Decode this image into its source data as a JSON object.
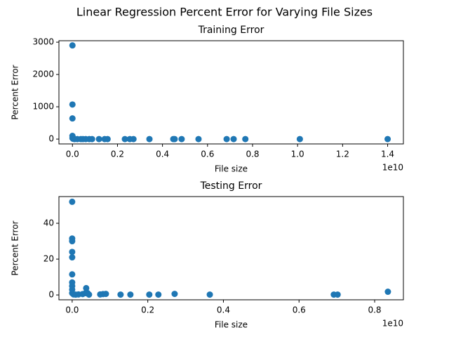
{
  "title": "Linear Regression Percent Error for Varying File Sizes",
  "chart_data": [
    {
      "type": "scatter",
      "title": "Training Error",
      "x_label": "File size",
      "y_label": "Percent Error",
      "x_offset_label": "1e10",
      "color": "#1f77b4",
      "x": [
        0,
        0,
        0,
        0,
        0,
        30000000,
        93000000,
        218000000,
        373000000,
        467000000,
        591000000,
        747000000,
        871000000,
        1180000000,
        1430000000,
        1560000000,
        2330000000,
        2550000000,
        2710000000,
        3420000000,
        4480000000,
        4540000000,
        4850000000,
        5600000000,
        6850000000,
        7160000000,
        7680000000,
        10100000000,
        14000000000
      ],
      "values": [
        2900,
        1070,
        640,
        100,
        30,
        10,
        0,
        0,
        0,
        0,
        0,
        0,
        0,
        0,
        0,
        0,
        0,
        0,
        0,
        0,
        0,
        0,
        0,
        0,
        0,
        0,
        0,
        0,
        0
      ],
      "xlim": [
        -600000000,
        14700000000
      ],
      "ylim": [
        -150,
        3045
      ],
      "xticks": [
        {
          "value": 0,
          "label": "0.0"
        },
        {
          "value": 2000000000,
          "label": "0.2"
        },
        {
          "value": 4000000000,
          "label": "0.4"
        },
        {
          "value": 6000000000,
          "label": "0.6"
        },
        {
          "value": 8000000000,
          "label": "0.8"
        },
        {
          "value": 10000000000,
          "label": "1.0"
        },
        {
          "value": 12000000000,
          "label": "1.2"
        },
        {
          "value": 14000000000,
          "label": "1.4"
        }
      ],
      "yticks": [
        0,
        1000,
        2000,
        3000
      ]
    },
    {
      "type": "scatter",
      "title": "Testing Error",
      "x_label": "File size",
      "y_label": "Percent Error",
      "x_offset_label": "1e10",
      "color": "#1f77b4",
      "x": [
        0,
        0,
        0,
        0,
        0,
        0,
        0,
        0,
        0,
        0,
        37000000,
        93000000,
        167000000,
        278000000,
        353000000,
        371000000,
        408000000,
        445000000,
        742000000,
        817000000,
        891000000,
        1280000000,
        1540000000,
        2040000000,
        2280000000,
        2710000000,
        3640000000,
        6920000000,
        7020000000,
        8350000000
      ],
      "values": [
        52,
        31.5,
        30,
        24,
        21,
        11.5,
        7,
        5,
        3,
        1,
        0.3,
        0.2,
        0.3,
        0.5,
        1,
        3.8,
        1,
        0.2,
        0.3,
        0.5,
        0.6,
        0.2,
        0.2,
        0.2,
        0.2,
        0.6,
        0.2,
        0.2,
        0.2,
        1.8
      ],
      "xlim": [
        -350000000,
        8760000000
      ],
      "ylim": [
        -2.7,
        54.9
      ],
      "xticks": [
        {
          "value": 0,
          "label": "0.0"
        },
        {
          "value": 2000000000,
          "label": "0.2"
        },
        {
          "value": 4000000000,
          "label": "0.4"
        },
        {
          "value": 6000000000,
          "label": "0.6"
        },
        {
          "value": 8000000000,
          "label": "0.8"
        }
      ],
      "yticks": [
        0,
        20,
        40
      ]
    }
  ]
}
